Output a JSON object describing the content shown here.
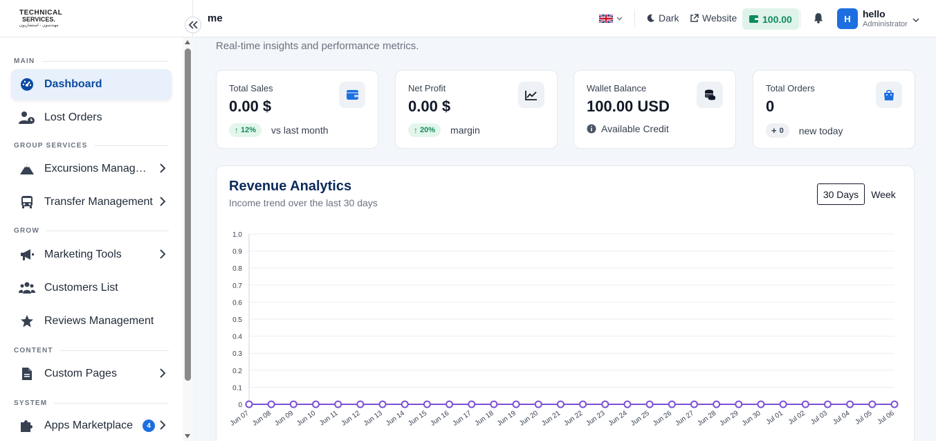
{
  "brand": {
    "logo_line1": "TECHNICAL",
    "logo_line2": "SERVICES.",
    "logo_line3": "مهندسون - استشاريون"
  },
  "sidebar": {
    "sections": [
      {
        "label": "MAIN"
      },
      {
        "label": "GROUP SERVICES"
      },
      {
        "label": "GROW"
      },
      {
        "label": "CONTENT"
      },
      {
        "label": "SYSTEM"
      }
    ],
    "items": [
      {
        "label": "Dashboard",
        "icon": "dashboard-gauge-icon"
      },
      {
        "label": "Lost Orders",
        "icon": "user-clock-icon"
      },
      {
        "label": "Excursions Management",
        "icon": "mountain-icon"
      },
      {
        "label": "Transfer Management",
        "icon": "bus-icon"
      },
      {
        "label": "Marketing Tools",
        "icon": "megaphone-icon"
      },
      {
        "label": "Customers List",
        "icon": "users-icon"
      },
      {
        "label": "Reviews Management",
        "icon": "star-icon"
      },
      {
        "label": "Custom Pages",
        "icon": "file-icon"
      },
      {
        "label": "Apps Marketplace",
        "icon": "puzzle-icon",
        "badge": "4"
      }
    ]
  },
  "topbar": {
    "page_name": "me",
    "theme_label": "Dark",
    "website_label": "Website",
    "wallet_amount": "100.00",
    "user_name": "hello",
    "user_role": "Administrator",
    "avatar_initial": "H"
  },
  "main": {
    "subtitle": "Real-time insights and performance metrics."
  },
  "stats": [
    {
      "label": "Total Sales",
      "value": "0.00 $",
      "pill": "12%",
      "note": "vs last month",
      "icon": "wallet-icon"
    },
    {
      "label": "Net Profit",
      "value": "0.00 $",
      "pill": "20%",
      "note": "margin",
      "icon": "chart-line-icon"
    },
    {
      "label": "Wallet Balance",
      "value": "100.00 USD",
      "note": "Available Credit",
      "icon": "coins-icon"
    },
    {
      "label": "Total Orders",
      "value": "0",
      "pill": "0",
      "note": "new today",
      "icon": "shopping-bag-icon"
    }
  ],
  "revenue": {
    "title": "Revenue Analytics",
    "subtitle": "Income trend over the last 30 days",
    "range_active": "30 Days",
    "range_other": "Week"
  },
  "colors": {
    "accent": "#1d6fe0",
    "success": "#0f8a5f",
    "line": "#7b4fd6",
    "title": "#0b2a5b"
  },
  "chart_data": {
    "type": "line",
    "categories": [
      "Jun 07",
      "Jun 08",
      "Jun 09",
      "Jun 10",
      "Jun 11",
      "Jun 12",
      "Jun 13",
      "Jun 14",
      "Jun 15",
      "Jun 16",
      "Jun 17",
      "Jun 18",
      "Jun 19",
      "Jun 20",
      "Jun 21",
      "Jun 22",
      "Jun 23",
      "Jun 24",
      "Jun 25",
      "Jun 26",
      "Jun 27",
      "Jun 28",
      "Jun 29",
      "Jun 30",
      "Jul 01",
      "Jul 02",
      "Jul 03",
      "Jul 04",
      "Jul 05",
      "Jul 06"
    ],
    "series": [
      {
        "values": [
          0,
          0,
          0,
          0,
          0,
          0,
          0,
          0,
          0,
          0,
          0,
          0,
          0,
          0,
          0,
          0,
          0,
          0,
          0,
          0,
          0,
          0,
          0,
          0,
          0,
          0,
          0,
          0,
          0,
          0
        ]
      }
    ],
    "yticks": [
      "0",
      "0.1",
      "0.2",
      "0.3",
      "0.4",
      "0.5",
      "0.6",
      "0.7",
      "0.8",
      "0.9",
      "1.0"
    ],
    "ylim": [
      0,
      1
    ],
    "grid": true,
    "title": "",
    "xlabel": "",
    "ylabel": ""
  }
}
